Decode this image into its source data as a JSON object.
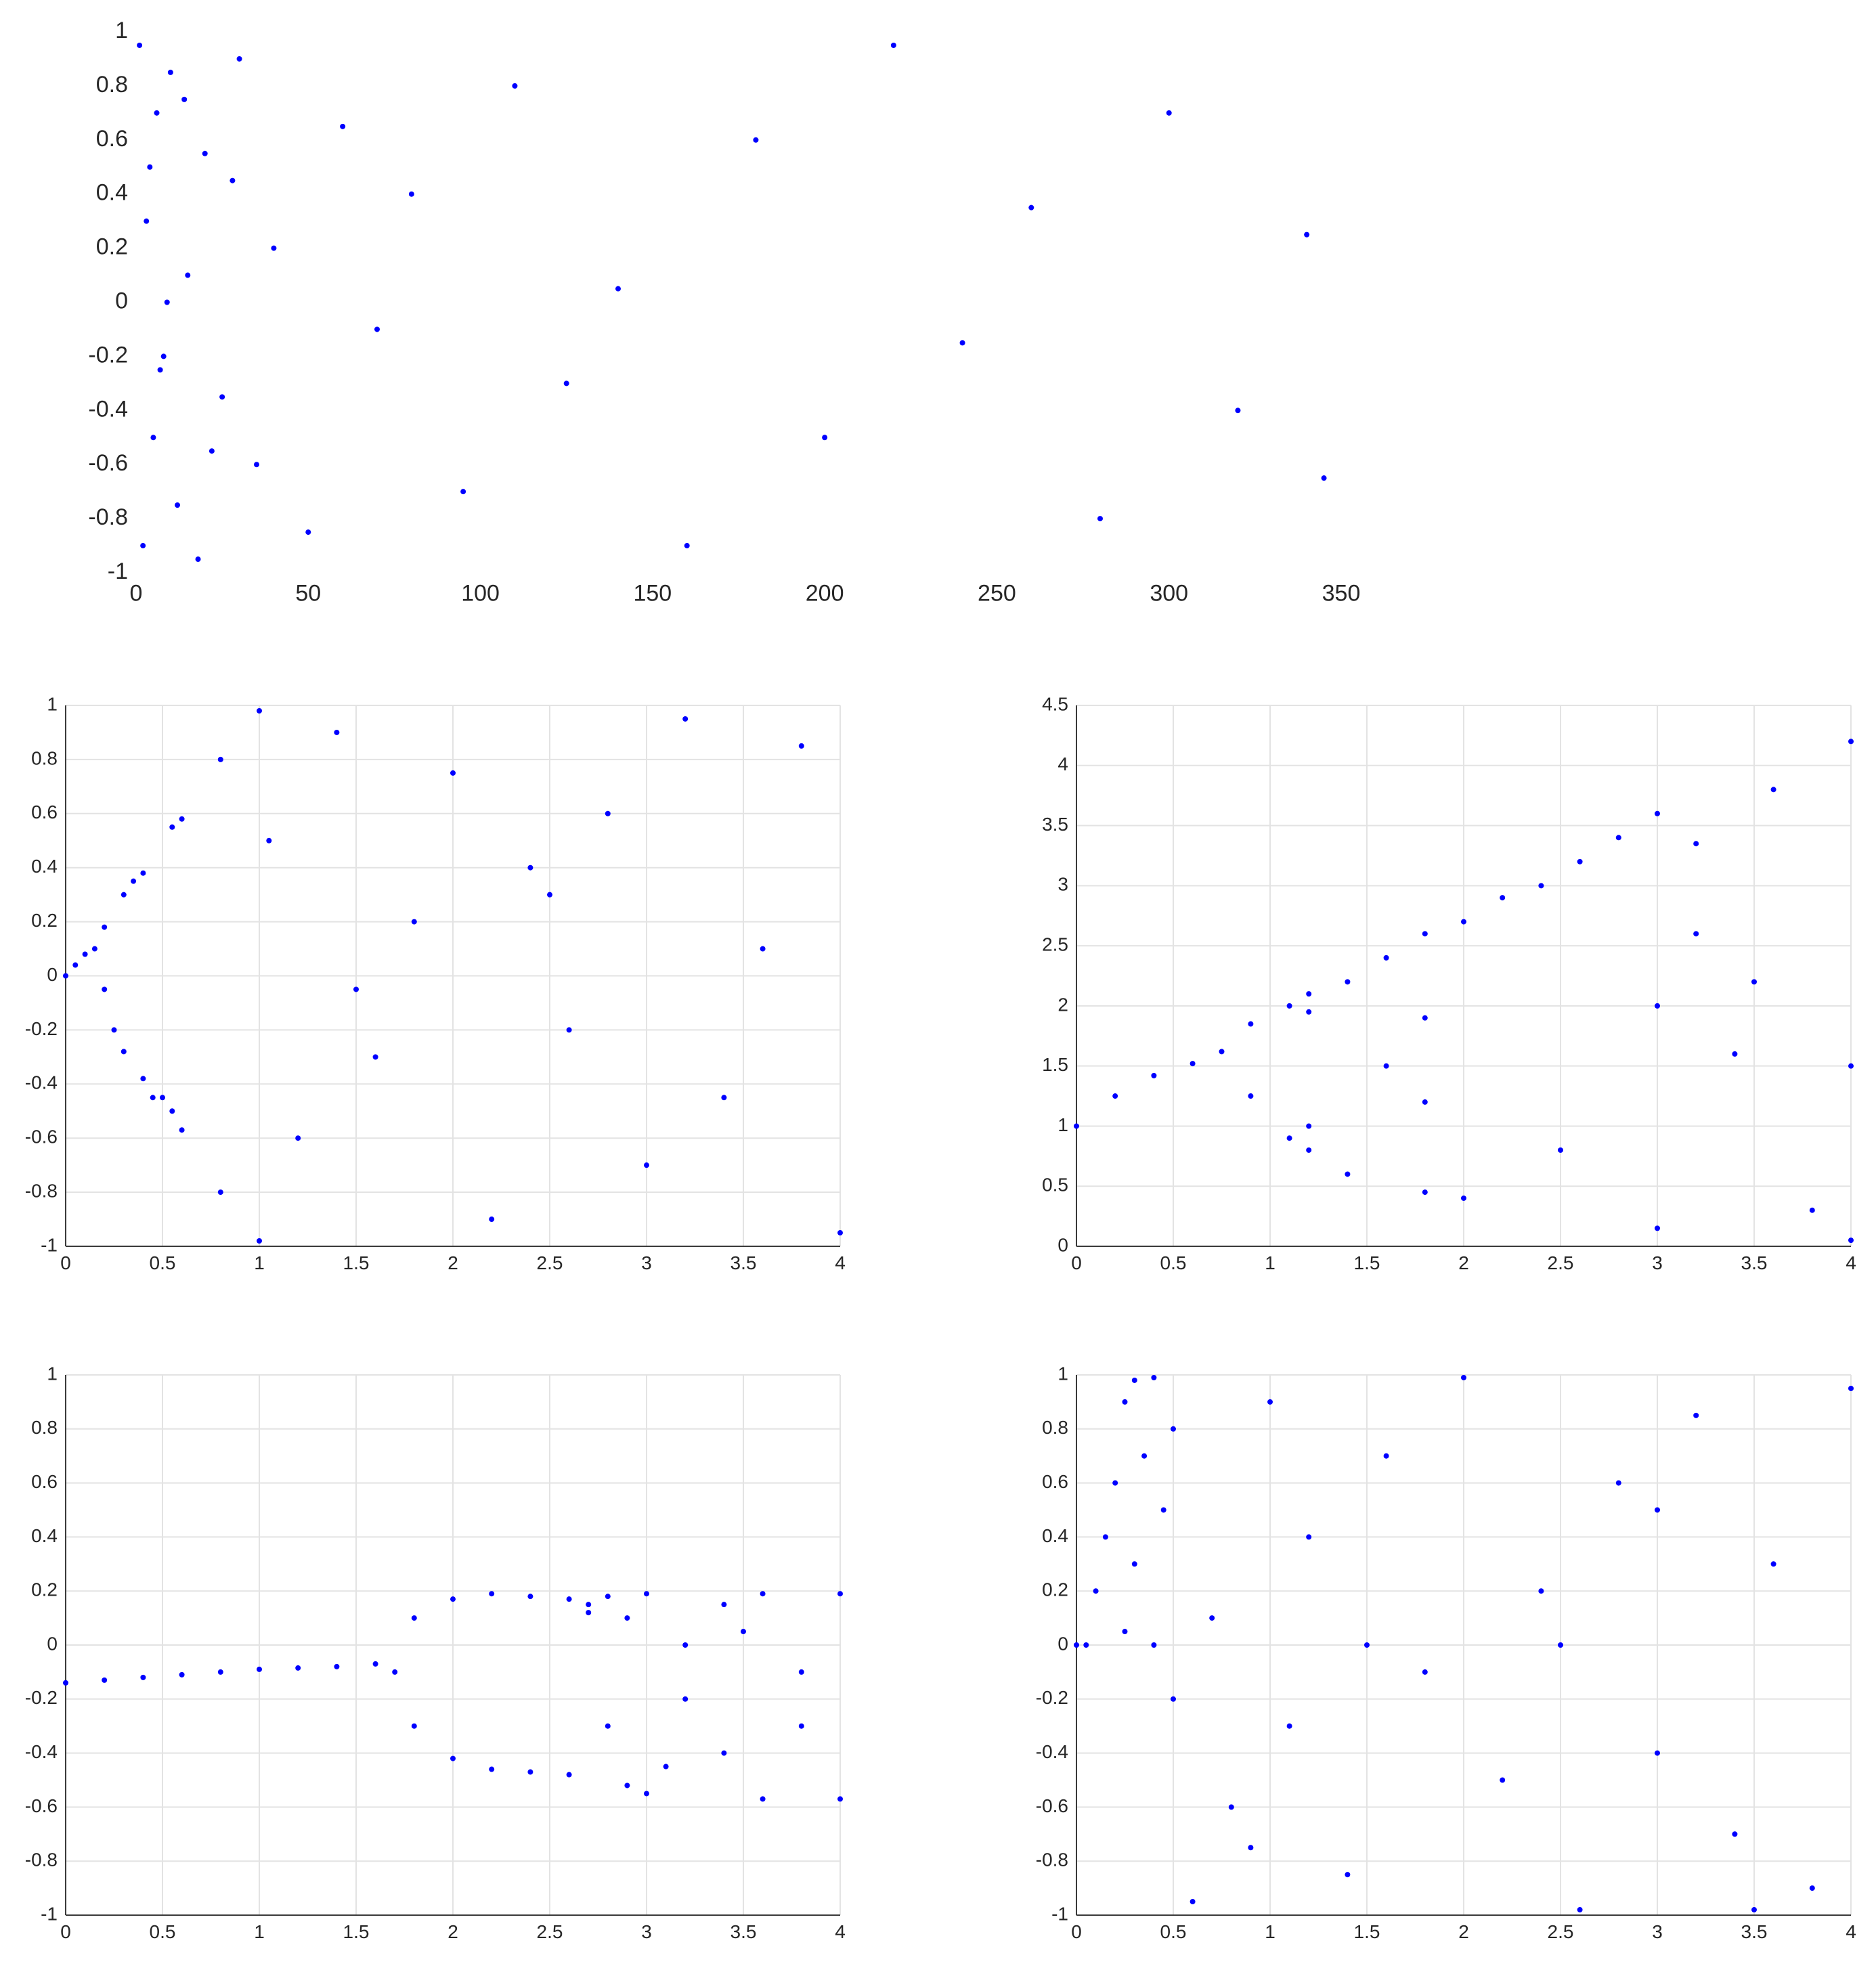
{
  "chart_data": [
    {
      "type": "scatter",
      "color": "#0000ff",
      "grid": false,
      "xlim": [
        0,
        350
      ],
      "ylim": [
        -1,
        1
      ],
      "xticks": [
        0,
        50,
        100,
        150,
        200,
        250,
        300,
        350
      ],
      "yticks": [
        -1,
        -0.8,
        -0.6,
        -0.4,
        -0.2,
        0,
        0.2,
        0.4,
        0.6,
        0.8,
        1
      ],
      "x": [
        1,
        2,
        3,
        5,
        6,
        8,
        10,
        12,
        15,
        18,
        20,
        25,
        30,
        35,
        40,
        50,
        60,
        70,
        80,
        95,
        110,
        125,
        140,
        160,
        180,
        200,
        220,
        240,
        260,
        280,
        300,
        320,
        340,
        345,
        4,
        7,
        9,
        14,
        22,
        28
      ],
      "y": [
        0.95,
        -0.9,
        0.3,
        -0.5,
        0.7,
        -0.2,
        0.85,
        -0.75,
        0.1,
        -0.95,
        0.55,
        -0.35,
        0.9,
        -0.6,
        0.2,
        -0.85,
        0.65,
        -0.1,
        0.4,
        -0.7,
        0.8,
        -0.3,
        0.05,
        -0.9,
        0.6,
        -0.5,
        0.95,
        -0.15,
        0.35,
        -0.8,
        0.7,
        -0.4,
        0.25,
        -0.65,
        0.5,
        -0.25,
        0.0,
        0.75,
        -0.55,
        0.45
      ]
    },
    {
      "type": "scatter",
      "color": "#0000ff",
      "grid": true,
      "xlim": [
        0,
        4
      ],
      "ylim": [
        -1,
        1
      ],
      "xticks": [
        0,
        0.5,
        1,
        1.5,
        2,
        2.5,
        3,
        3.5,
        4
      ],
      "yticks": [
        -1,
        -0.8,
        -0.6,
        -0.4,
        -0.2,
        0,
        0.2,
        0.4,
        0.6,
        0.8,
        1
      ],
      "x": [
        0,
        0.05,
        0.1,
        0.15,
        0.2,
        0.2,
        0.25,
        0.3,
        0.3,
        0.35,
        0.4,
        0.4,
        0.45,
        0.5,
        0.55,
        0.55,
        0.6,
        0.6,
        0.8,
        0.8,
        1.0,
        1.0,
        1.05,
        1.2,
        1.4,
        1.6,
        1.8,
        2.0,
        2.2,
        2.4,
        2.6,
        2.8,
        3.0,
        3.2,
        3.4,
        3.6,
        3.8,
        4.0,
        1.5,
        2.5
      ],
      "y": [
        0,
        0.04,
        0.08,
        0.1,
        0.18,
        -0.05,
        -0.2,
        0.3,
        -0.28,
        0.35,
        0.38,
        -0.38,
        -0.45,
        -0.45,
        0.55,
        -0.5,
        0.58,
        -0.57,
        0.8,
        -0.8,
        0.98,
        -0.98,
        0.5,
        -0.6,
        0.9,
        -0.3,
        0.2,
        0.75,
        -0.9,
        0.4,
        -0.2,
        0.6,
        -0.7,
        0.95,
        -0.45,
        0.1,
        0.85,
        -0.95,
        -0.05,
        0.3
      ]
    },
    {
      "type": "scatter",
      "color": "#0000ff",
      "grid": true,
      "xlim": [
        0,
        4
      ],
      "ylim": [
        0,
        4.5
      ],
      "xticks": [
        0,
        0.5,
        1,
        1.5,
        2,
        2.5,
        3,
        3.5,
        4
      ],
      "yticks": [
        0,
        0.5,
        1,
        1.5,
        2,
        2.5,
        3,
        3.5,
        4,
        4.5
      ],
      "x": [
        0,
        0.2,
        0.4,
        0.6,
        0.75,
        0.9,
        0.9,
        1.1,
        1.1,
        1.2,
        1.2,
        1.2,
        1.2,
        1.4,
        1.4,
        1.6,
        1.6,
        1.8,
        1.8,
        1.8,
        1.8,
        2.0,
        2.0,
        2.2,
        2.4,
        2.6,
        2.8,
        3.0,
        3.0,
        3.2,
        3.2,
        3.4,
        3.5,
        3.6,
        3.8,
        4.0,
        4.0,
        4.0,
        2.5,
        3.0
      ],
      "y": [
        1.0,
        1.25,
        1.42,
        1.52,
        1.62,
        1.85,
        1.25,
        2.0,
        0.9,
        2.1,
        1.95,
        1.0,
        0.8,
        2.2,
        0.6,
        2.4,
        1.5,
        2.6,
        1.9,
        1.2,
        0.45,
        2.7,
        0.4,
        2.9,
        3.0,
        3.2,
        3.4,
        3.6,
        2.0,
        3.35,
        2.6,
        1.6,
        2.2,
        3.8,
        0.3,
        4.2,
        1.5,
        0.05,
        0.8,
        0.15
      ]
    },
    {
      "type": "scatter",
      "color": "#0000ff",
      "grid": true,
      "xlim": [
        0,
        4
      ],
      "ylim": [
        -1,
        1
      ],
      "xticks": [
        0,
        0.5,
        1,
        1.5,
        2,
        2.5,
        3,
        3.5,
        4
      ],
      "yticks": [
        -1,
        -0.8,
        -0.6,
        -0.4,
        -0.2,
        0,
        0.2,
        0.4,
        0.6,
        0.8,
        1
      ],
      "x": [
        0,
        0.2,
        0.4,
        0.6,
        0.8,
        1.0,
        1.2,
        1.4,
        1.6,
        1.7,
        1.8,
        1.8,
        2.0,
        2.0,
        2.2,
        2.2,
        2.4,
        2.4,
        2.6,
        2.6,
        2.7,
        2.7,
        2.8,
        2.8,
        2.9,
        2.9,
        3.0,
        3.0,
        3.2,
        3.2,
        3.4,
        3.4,
        3.6,
        3.6,
        3.8,
        3.8,
        4.0,
        4.0,
        3.1,
        3.5
      ],
      "y": [
        -0.14,
        -0.13,
        -0.12,
        -0.11,
        -0.1,
        -0.09,
        -0.085,
        -0.08,
        -0.07,
        -0.1,
        0.1,
        -0.3,
        0.17,
        -0.42,
        0.19,
        -0.46,
        0.18,
        -0.47,
        0.17,
        -0.48,
        0.15,
        0.12,
        0.18,
        -0.3,
        0.1,
        -0.52,
        0.19,
        -0.55,
        0.0,
        -0.2,
        0.15,
        -0.4,
        0.19,
        -0.57,
        -0.1,
        -0.3,
        0.19,
        -0.57,
        -0.45,
        0.05
      ]
    },
    {
      "type": "scatter",
      "color": "#0000ff",
      "grid": true,
      "xlim": [
        0,
        4
      ],
      "ylim": [
        -1,
        1
      ],
      "xticks": [
        0,
        0.5,
        1,
        1.5,
        2,
        2.5,
        3,
        3.5,
        4
      ],
      "yticks": [
        -1,
        -0.8,
        -0.6,
        -0.4,
        -0.2,
        0,
        0.2,
        0.4,
        0.6,
        0.8,
        1
      ],
      "x": [
        0,
        0.05,
        0.1,
        0.15,
        0.2,
        0.25,
        0.25,
        0.3,
        0.3,
        0.35,
        0.4,
        0.4,
        0.45,
        0.5,
        0.5,
        0.6,
        0.7,
        0.8,
        1.0,
        1.1,
        1.2,
        1.4,
        1.6,
        1.8,
        2.0,
        2.2,
        2.4,
        2.6,
        2.8,
        3.0,
        3.2,
        3.4,
        3.6,
        3.8,
        4.0,
        1.5,
        2.5,
        3.5,
        0.9,
        3.0
      ],
      "y": [
        0,
        0,
        0.2,
        0.4,
        0.6,
        0.9,
        0.05,
        0.98,
        0.3,
        0.7,
        0.0,
        0.99,
        0.5,
        0.8,
        -0.2,
        -0.95,
        0.1,
        -0.6,
        0.9,
        -0.3,
        0.4,
        -0.85,
        0.7,
        -0.1,
        0.99,
        -0.5,
        0.2,
        -0.98,
        0.6,
        -0.4,
        0.85,
        -0.7,
        0.3,
        -0.9,
        0.95,
        0.0,
        0.0,
        -0.98,
        -0.75,
        0.5
      ]
    }
  ]
}
